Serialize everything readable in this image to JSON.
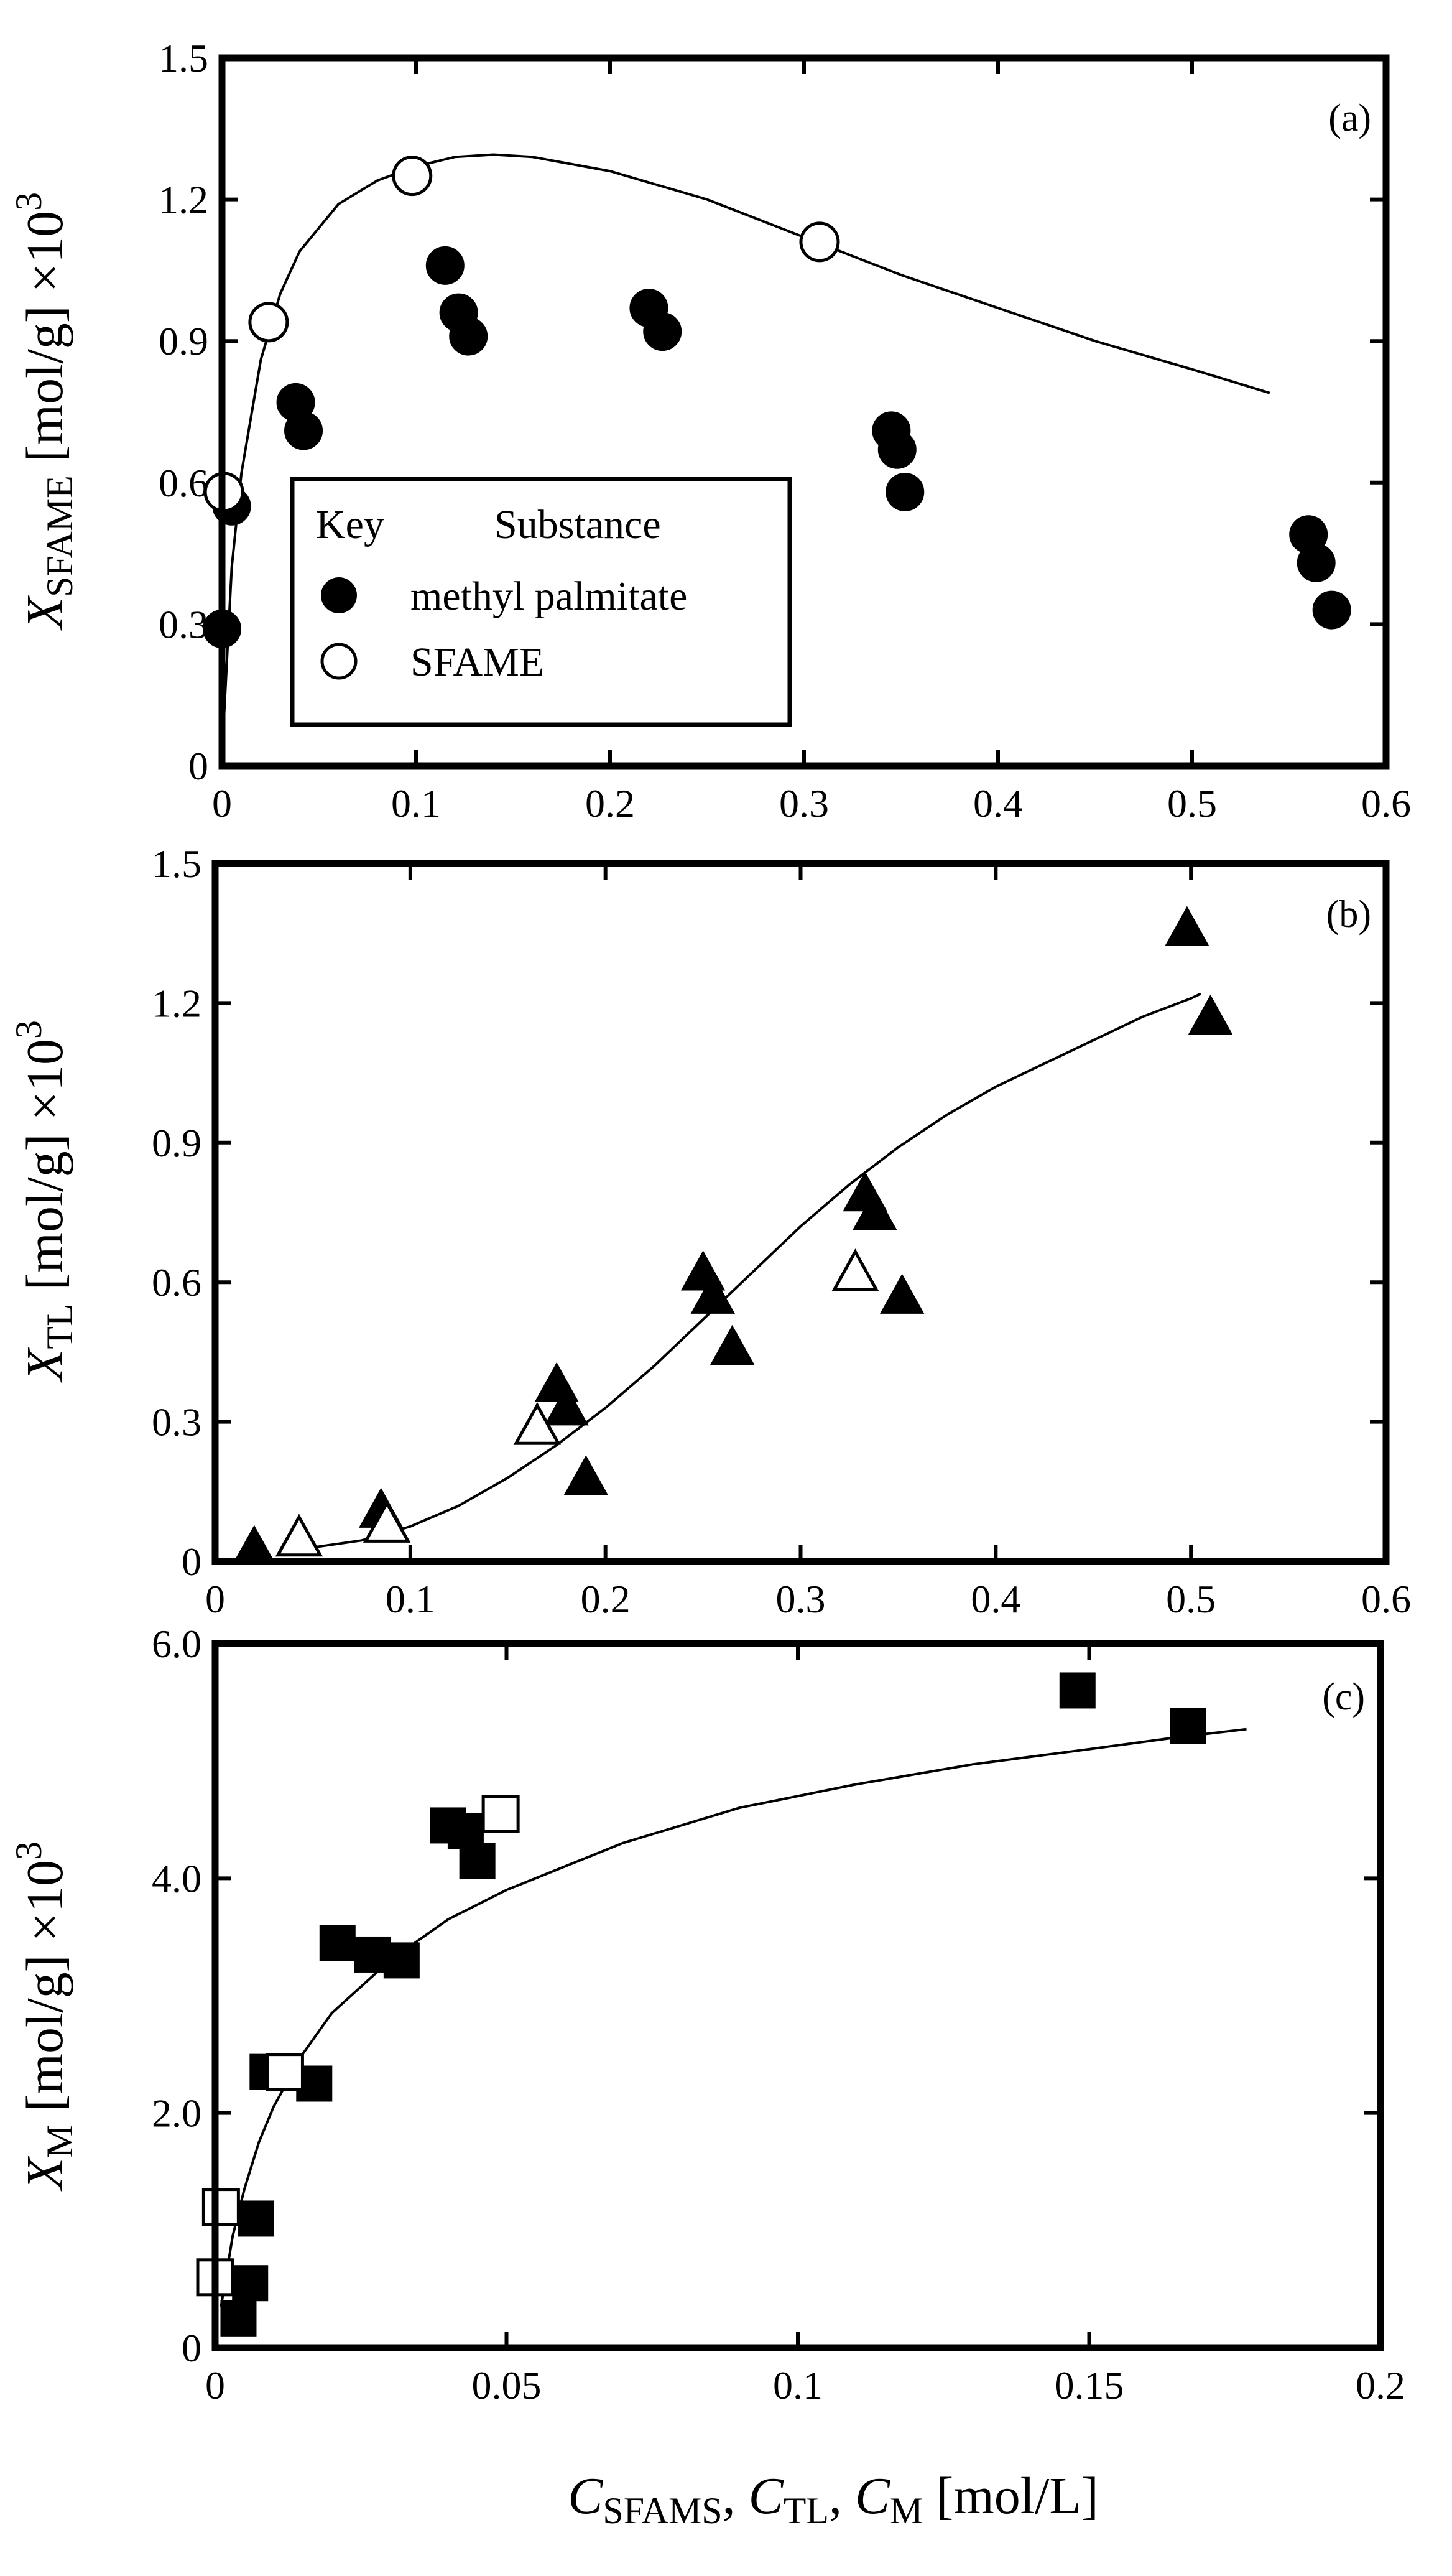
{
  "chart_data": [
    {
      "id": "a",
      "type": "scatter",
      "panel_label": "(a)",
      "ylabel": {
        "var": "X",
        "sub": "SFAME",
        "unit": " [mol/g] ×10",
        "sup": "3"
      },
      "xlim": [
        0,
        0.6
      ],
      "ylim": [
        0,
        1.5
      ],
      "xticks": [
        "0",
        "0.1",
        "0.2",
        "0.3",
        "0.4",
        "0.5",
        "0.6"
      ],
      "yticks": [
        "0",
        "0.3",
        "0.6",
        "0.9",
        "1.2",
        "1.5"
      ],
      "legend": {
        "position": "bottom-left",
        "header_key": "Key",
        "header_substance": "Substance",
        "entries": [
          {
            "marker": "filled-circle",
            "label": "methyl palmitate"
          },
          {
            "marker": "open-circle",
            "label": "SFAME"
          }
        ]
      },
      "series": [
        {
          "name": "methyl palmitate",
          "marker": "filled-circle",
          "points": [
            [
              0.0,
              0.29
            ],
            [
              0.005,
              0.55
            ],
            [
              0.038,
              0.77
            ],
            [
              0.042,
              0.71
            ],
            [
              0.115,
              1.06
            ],
            [
              0.122,
              0.96
            ],
            [
              0.127,
              0.91
            ],
            [
              0.22,
              0.97
            ],
            [
              0.227,
              0.92
            ],
            [
              0.345,
              0.71
            ],
            [
              0.348,
              0.67
            ],
            [
              0.352,
              0.58
            ],
            [
              0.56,
              0.49
            ],
            [
              0.564,
              0.43
            ],
            [
              0.572,
              0.33
            ]
          ]
        },
        {
          "name": "SFAME",
          "marker": "open-circle",
          "points": [
            [
              0.001,
              0.58
            ],
            [
              0.024,
              0.94
            ],
            [
              0.098,
              1.25
            ],
            [
              0.308,
              1.11
            ]
          ]
        }
      ],
      "fit_curve": [
        [
          0.001,
          0.1
        ],
        [
          0.005,
          0.42
        ],
        [
          0.01,
          0.62
        ],
        [
          0.02,
          0.86
        ],
        [
          0.03,
          1.0
        ],
        [
          0.04,
          1.09
        ],
        [
          0.06,
          1.19
        ],
        [
          0.08,
          1.24
        ],
        [
          0.1,
          1.27
        ],
        [
          0.12,
          1.29
        ],
        [
          0.14,
          1.295
        ],
        [
          0.16,
          1.29
        ],
        [
          0.2,
          1.26
        ],
        [
          0.25,
          1.2
        ],
        [
          0.3,
          1.12
        ],
        [
          0.35,
          1.04
        ],
        [
          0.4,
          0.97
        ],
        [
          0.45,
          0.9
        ],
        [
          0.5,
          0.84
        ],
        [
          0.54,
          0.79
        ]
      ]
    },
    {
      "id": "b",
      "type": "scatter",
      "panel_label": "(b)",
      "ylabel": {
        "var": "X",
        "sub": "TL",
        "unit": " [mol/g] ×10",
        "sup": "3"
      },
      "xlim": [
        0,
        0.6
      ],
      "ylim": [
        0,
        1.5
      ],
      "xticks": [
        "0",
        "0.1",
        "0.2",
        "0.3",
        "0.4",
        "0.5",
        "0.6"
      ],
      "yticks": [
        "0",
        "0.3",
        "0.6",
        "0.9",
        "1.2",
        "1.5"
      ],
      "series": [
        {
          "name": "filled",
          "marker": "filled-triangle",
          "points": [
            [
              0.02,
              0.03
            ],
            [
              0.085,
              0.11
            ],
            [
              0.175,
              0.38
            ],
            [
              0.18,
              0.33
            ],
            [
              0.19,
              0.18
            ],
            [
              0.25,
              0.62
            ],
            [
              0.255,
              0.57
            ],
            [
              0.265,
              0.46
            ],
            [
              0.333,
              0.79
            ],
            [
              0.338,
              0.75
            ],
            [
              0.352,
              0.57
            ],
            [
              0.498,
              1.36
            ],
            [
              0.51,
              1.17
            ]
          ]
        },
        {
          "name": "open",
          "marker": "open-triangle",
          "points": [
            [
              0.043,
              0.05
            ],
            [
              0.088,
              0.08
            ],
            [
              0.165,
              0.29
            ],
            [
              0.328,
              0.62
            ]
          ]
        }
      ],
      "fit_curve": [
        [
          0.05,
          0.03
        ],
        [
          0.075,
          0.045
        ],
        [
          0.1,
          0.075
        ],
        [
          0.125,
          0.12
        ],
        [
          0.15,
          0.18
        ],
        [
          0.175,
          0.25
        ],
        [
          0.2,
          0.33
        ],
        [
          0.225,
          0.42
        ],
        [
          0.25,
          0.52
        ],
        [
          0.275,
          0.62
        ],
        [
          0.3,
          0.72
        ],
        [
          0.325,
          0.81
        ],
        [
          0.35,
          0.89
        ],
        [
          0.375,
          0.96
        ],
        [
          0.4,
          1.02
        ],
        [
          0.425,
          1.07
        ],
        [
          0.45,
          1.12
        ],
        [
          0.475,
          1.17
        ],
        [
          0.5,
          1.21
        ],
        [
          0.505,
          1.22
        ]
      ]
    },
    {
      "id": "c",
      "type": "scatter",
      "panel_label": "(c)",
      "ylabel": {
        "var": "X",
        "sub": "M",
        "unit": " [mol/g] ×10",
        "sup": "3"
      },
      "xlabel": {
        "parts": [
          [
            "C",
            "SFAMS"
          ],
          [
            "C",
            "TL"
          ],
          [
            "C",
            "M"
          ]
        ],
        "unit": " [mol/L]"
      },
      "xlim": [
        0,
        0.2
      ],
      "ylim": [
        0,
        6.0
      ],
      "xticks": [
        "0",
        "0.05",
        "0.1",
        "0.15",
        "0.2"
      ],
      "yticks": [
        "0",
        "2.0",
        "4.0",
        "6.0"
      ],
      "series": [
        {
          "name": "filled",
          "marker": "filled-square",
          "points": [
            [
              0.004,
              0.25
            ],
            [
              0.006,
              0.55
            ],
            [
              0.007,
              1.1
            ],
            [
              0.009,
              2.35
            ],
            [
              0.017,
              2.25
            ],
            [
              0.021,
              3.45
            ],
            [
              0.027,
              3.35
            ],
            [
              0.032,
              3.3
            ],
            [
              0.04,
              4.45
            ],
            [
              0.043,
              4.4
            ],
            [
              0.045,
              4.15
            ],
            [
              0.148,
              5.6
            ],
            [
              0.167,
              5.3
            ]
          ]
        },
        {
          "name": "open",
          "marker": "open-square",
          "points": [
            [
              0.0,
              0.6
            ],
            [
              0.001,
              1.2
            ],
            [
              0.012,
              2.35
            ],
            [
              0.049,
              4.55
            ]
          ]
        }
      ],
      "fit_curve": [
        [
          0.001,
          0.35
        ],
        [
          0.003,
          0.95
        ],
        [
          0.005,
          1.35
        ],
        [
          0.0075,
          1.75
        ],
        [
          0.01,
          2.05
        ],
        [
          0.015,
          2.5
        ],
        [
          0.02,
          2.85
        ],
        [
          0.03,
          3.3
        ],
        [
          0.04,
          3.65
        ],
        [
          0.05,
          3.9
        ],
        [
          0.07,
          4.3
        ],
        [
          0.09,
          4.6
        ],
        [
          0.11,
          4.8
        ],
        [
          0.13,
          4.97
        ],
        [
          0.15,
          5.1
        ],
        [
          0.165,
          5.2
        ],
        [
          0.177,
          5.27
        ]
      ]
    }
  ]
}
